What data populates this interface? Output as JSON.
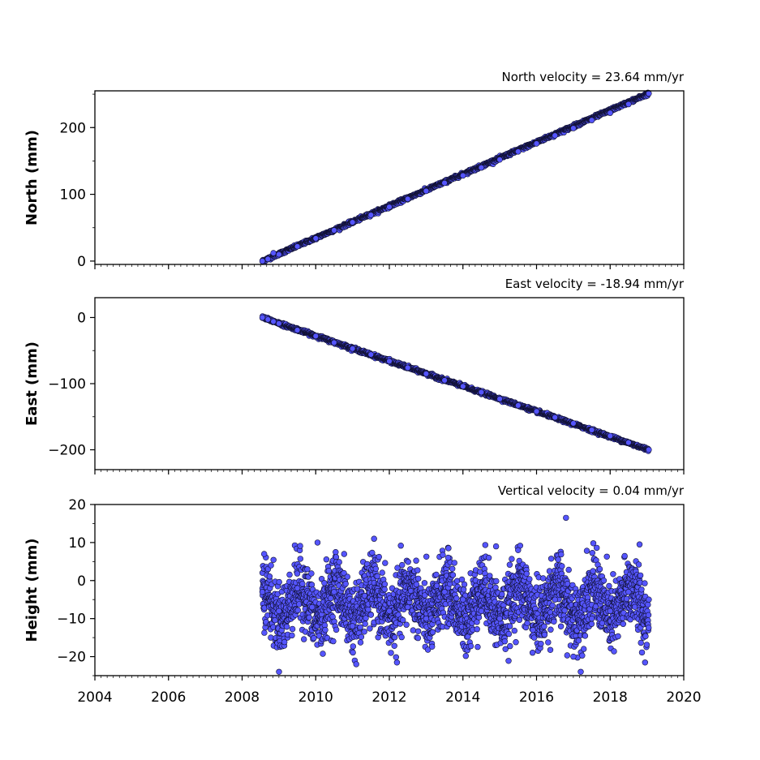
{
  "chart_data": [
    {
      "type": "scatter",
      "panel": "north",
      "title": "North velocity = 23.64 mm/yr",
      "xlabel": "",
      "ylabel": "North (mm)",
      "xlim": [
        2004,
        2020
      ],
      "ylim": [
        -5,
        255
      ],
      "yticks": [
        0,
        100,
        200
      ],
      "ytick_labels": [
        "0",
        "100",
        "200"
      ],
      "marker_color": "#5555ff",
      "edge_color": "#111133",
      "velocity_mm_per_yr": 23.64,
      "series_summary": {
        "start_x": 2008.55,
        "start_y": 0,
        "end_x": 2019.05,
        "end_y": 251
      },
      "x": [
        2008.55,
        2008.7,
        2008.85,
        2009.0,
        2009.5,
        2010.0,
        2010.5,
        2011.0,
        2011.5,
        2012.0,
        2012.5,
        2013.0,
        2013.5,
        2014.0,
        2014.5,
        2015.0,
        2015.5,
        2016.0,
        2016.5,
        2017.0,
        2017.5,
        2018.0,
        2018.5,
        2019.05
      ],
      "y": [
        0,
        3,
        12,
        10,
        22,
        34,
        46,
        58,
        69,
        81,
        93,
        105,
        117,
        128,
        140,
        152,
        164,
        176,
        188,
        199,
        211,
        222,
        235,
        251
      ]
    },
    {
      "type": "scatter",
      "panel": "east",
      "title": "East velocity = -18.94 mm/yr",
      "xlabel": "",
      "ylabel": "East (mm)",
      "xlim": [
        2004,
        2020
      ],
      "ylim": [
        -230,
        30
      ],
      "yticks": [
        0,
        -100,
        -200
      ],
      "ytick_labels": [
        "0",
        "−100",
        "−200"
      ],
      "marker_color": "#5555ff",
      "edge_color": "#111133",
      "velocity_mm_per_yr": -18.94,
      "series_summary": {
        "start_x": 2008.55,
        "start_y": 0,
        "end_x": 2019.05,
        "end_y": -200
      },
      "x": [
        2008.55,
        2008.7,
        2008.85,
        2009.0,
        2009.5,
        2010.0,
        2010.5,
        2011.0,
        2011.5,
        2012.0,
        2012.5,
        2013.0,
        2013.5,
        2014.0,
        2014.5,
        2015.0,
        2015.5,
        2016.0,
        2016.5,
        2017.0,
        2017.5,
        2018.0,
        2018.5,
        2019.05
      ],
      "y": [
        0,
        -3,
        -6,
        -9,
        -19,
        -28,
        -38,
        -47,
        -56,
        -66,
        -76,
        -85,
        -95,
        -104,
        -113,
        -123,
        -133,
        -142,
        -151,
        -160,
        -170,
        -179,
        -189,
        -200
      ]
    },
    {
      "type": "scatter",
      "panel": "height",
      "title": "Vertical velocity = 0.04 mm/yr",
      "xlabel": "",
      "ylabel": "Height (mm)",
      "xlim": [
        2004,
        2020
      ],
      "ylim": [
        -25,
        20
      ],
      "yticks": [
        20,
        10,
        0,
        -10,
        -20
      ],
      "ytick_labels": [
        "20",
        "10",
        "0",
        "−10",
        "−20"
      ],
      "xticks": [
        2004,
        2006,
        2008,
        2010,
        2012,
        2014,
        2016,
        2018,
        2020
      ],
      "xtick_labels": [
        "2004",
        "2006",
        "2008",
        "2010",
        "2012",
        "2014",
        "2016",
        "2018",
        "2020"
      ],
      "marker_color": "#5555ff",
      "edge_color": "#111133",
      "velocity_mm_per_yr": 0.04,
      "series_summary": {
        "x_range": [
          2008.55,
          2019.05
        ],
        "y_range_approx": [
          -24,
          17
        ]
      },
      "x": [
        2008.55,
        2008.6,
        2009.0,
        2009.5,
        2009.9,
        2010.05,
        2010.5,
        2011.0,
        2011.1,
        2011.5,
        2012.0,
        2012.5,
        2013.0,
        2013.5,
        2013.6,
        2014.0,
        2014.5,
        2014.9,
        2015.0,
        2015.5,
        2015.9,
        2016.5,
        2016.8,
        2017.0,
        2017.2,
        2017.5,
        2018.0,
        2018.5,
        2018.8,
        2019.05
      ],
      "y": [
        -3,
        7,
        -8,
        -2,
        -7,
        10,
        -3,
        -12,
        -22,
        -9,
        -8,
        -7,
        -10,
        -3,
        6,
        -5,
        -8,
        9,
        -10,
        8,
        -13,
        -5,
        16.5,
        -20,
        -24,
        -10,
        -8,
        -3,
        9.5,
        -5
      ]
    }
  ]
}
